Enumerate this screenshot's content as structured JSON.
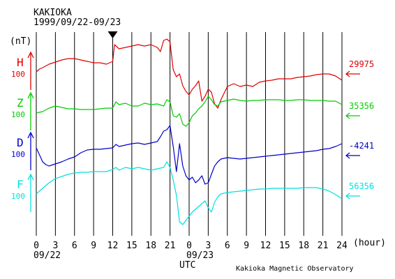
{
  "chart_data": {
    "type": "line",
    "title": "KAKIOKA",
    "subtitle": "1999/09/22-09/23",
    "y_unit_label": "(nT)",
    "x_unit_label": "(hour)",
    "xlabel": "UTC",
    "credit": "Kakioka Magnetic Observatory",
    "x_range_hours": [
      0,
      48
    ],
    "x_tick_labels": [
      "0",
      "3",
      "6",
      "9",
      "12",
      "15",
      "18",
      "21",
      "0",
      "3",
      "6",
      "9",
      "12",
      "15",
      "18",
      "21",
      "24"
    ],
    "date_labels": [
      "09/22",
      "09/23"
    ],
    "marker": {
      "symbol": "▼",
      "hour": 12
    },
    "series": [
      {
        "name": "H",
        "scale_label": "100",
        "baseline_label": "29975",
        "color": "#e00000",
        "points": [
          [
            0,
            103
          ],
          [
            0.5,
            99
          ],
          [
            1,
            97
          ],
          [
            2,
            92
          ],
          [
            3,
            89
          ],
          [
            4,
            86
          ],
          [
            5,
            84
          ],
          [
            6,
            84
          ],
          [
            7,
            86
          ],
          [
            8,
            88
          ],
          [
            9,
            90
          ],
          [
            10,
            90
          ],
          [
            11,
            92
          ],
          [
            12,
            88
          ],
          [
            12.3,
            64
          ],
          [
            13,
            70
          ],
          [
            14,
            68
          ],
          [
            15,
            66
          ],
          [
            16,
            64
          ],
          [
            17,
            66
          ],
          [
            18,
            64
          ],
          [
            19,
            68
          ],
          [
            19.5,
            74
          ],
          [
            20,
            58
          ],
          [
            20.5,
            56
          ],
          [
            21,
            60
          ],
          [
            21.5,
            100
          ],
          [
            22,
            110
          ],
          [
            22.5,
            106
          ],
          [
            23,
            123
          ],
          [
            23.5,
            131
          ],
          [
            24,
            136
          ],
          [
            24.5,
            128
          ],
          [
            25,
            123
          ],
          [
            25.5,
            116
          ],
          [
            26,
            145
          ],
          [
            26.5,
            138
          ],
          [
            27,
            128
          ],
          [
            27.5,
            132
          ],
          [
            28,
            149
          ],
          [
            28.5,
            155
          ],
          [
            29,
            143
          ],
          [
            30,
            124
          ],
          [
            31,
            120
          ],
          [
            32,
            124
          ],
          [
            33,
            122
          ],
          [
            34,
            124
          ],
          [
            35,
            118
          ],
          [
            36,
            116
          ],
          [
            37,
            115
          ],
          [
            38,
            113
          ],
          [
            39,
            113
          ],
          [
            40,
            113
          ],
          [
            41,
            111
          ],
          [
            42,
            110
          ],
          [
            43,
            109
          ],
          [
            44,
            107
          ],
          [
            45,
            106
          ],
          [
            46,
            106
          ],
          [
            47,
            109
          ],
          [
            48,
            115
          ]
        ]
      },
      {
        "name": "Z",
        "scale_label": "100",
        "baseline_label": "35356",
        "color": "#00cc00",
        "points": [
          [
            0,
            162
          ],
          [
            1,
            160
          ],
          [
            2,
            155
          ],
          [
            3,
            152
          ],
          [
            4,
            154
          ],
          [
            5,
            156
          ],
          [
            6,
            156
          ],
          [
            7,
            157
          ],
          [
            8,
            157
          ],
          [
            9,
            157
          ],
          [
            10,
            156
          ],
          [
            11,
            155
          ],
          [
            12,
            155
          ],
          [
            12.5,
            146
          ],
          [
            13,
            150
          ],
          [
            14,
            148
          ],
          [
            15,
            152
          ],
          [
            16,
            152
          ],
          [
            17,
            148
          ],
          [
            18,
            150
          ],
          [
            19,
            149
          ],
          [
            20,
            152
          ],
          [
            20.5,
            143
          ],
          [
            21,
            146
          ],
          [
            21.5,
            166
          ],
          [
            22,
            168
          ],
          [
            22.5,
            163
          ],
          [
            23,
            178
          ],
          [
            23.5,
            181
          ],
          [
            24,
            176
          ],
          [
            24.5,
            166
          ],
          [
            25,
            162
          ],
          [
            25.5,
            156
          ],
          [
            26,
            152
          ],
          [
            26.5,
            146
          ],
          [
            27,
            138
          ],
          [
            27.5,
            143
          ],
          [
            28,
            150
          ],
          [
            28.5,
            152
          ],
          [
            29,
            146
          ],
          [
            30,
            144
          ],
          [
            31,
            142
          ],
          [
            32,
            144
          ],
          [
            33,
            145
          ],
          [
            34,
            144
          ],
          [
            35,
            144
          ],
          [
            36,
            143
          ],
          [
            37,
            143
          ],
          [
            38,
            143
          ],
          [
            39,
            144
          ],
          [
            40,
            144
          ],
          [
            41,
            143
          ],
          [
            42,
            143
          ],
          [
            43,
            144
          ],
          [
            44,
            144
          ],
          [
            45,
            144
          ],
          [
            46,
            145
          ],
          [
            47,
            145
          ],
          [
            48,
            150
          ]
        ]
      },
      {
        "name": "D",
        "scale_label": "100",
        "baseline_label": "-4241",
        "color": "#0000cc",
        "points": [
          [
            0,
            212
          ],
          [
            0.5,
            222
          ],
          [
            1,
            232
          ],
          [
            1.5,
            236
          ],
          [
            2,
            238
          ],
          [
            3,
            235
          ],
          [
            4,
            232
          ],
          [
            5,
            228
          ],
          [
            6,
            225
          ],
          [
            7,
            219
          ],
          [
            8,
            215
          ],
          [
            9,
            214
          ],
          [
            10,
            214
          ],
          [
            11,
            213
          ],
          [
            12,
            212
          ],
          [
            12.5,
            207
          ],
          [
            13,
            210
          ],
          [
            14,
            208
          ],
          [
            15,
            206
          ],
          [
            16,
            205
          ],
          [
            17,
            207
          ],
          [
            18,
            205
          ],
          [
            19,
            203
          ],
          [
            19.5,
            196
          ],
          [
            20,
            188
          ],
          [
            20.5,
            186
          ],
          [
            21,
            180
          ],
          [
            21.5,
            210
          ],
          [
            22,
            246
          ],
          [
            22.5,
            206
          ],
          [
            23,
            238
          ],
          [
            23.5,
            252
          ],
          [
            24,
            258
          ],
          [
            24.5,
            254
          ],
          [
            25,
            262
          ],
          [
            25.5,
            258
          ],
          [
            26,
            252
          ],
          [
            26.5,
            264
          ],
          [
            27,
            262
          ],
          [
            27.5,
            250
          ],
          [
            28,
            238
          ],
          [
            28.5,
            232
          ],
          [
            29,
            228
          ],
          [
            30,
            226
          ],
          [
            31,
            227
          ],
          [
            32,
            228
          ],
          [
            33,
            227
          ],
          [
            34,
            226
          ],
          [
            35,
            225
          ],
          [
            36,
            224
          ],
          [
            37,
            223
          ],
          [
            38,
            222
          ],
          [
            39,
            221
          ],
          [
            40,
            220
          ],
          [
            41,
            219
          ],
          [
            42,
            218
          ],
          [
            43,
            217
          ],
          [
            44,
            216
          ],
          [
            45,
            214
          ],
          [
            46,
            213
          ],
          [
            47,
            210
          ],
          [
            48,
            206
          ]
        ]
      },
      {
        "name": "F",
        "scale_label": "100",
        "baseline_label": "56356",
        "color": "#00e0e0",
        "points": [
          [
            0,
            278
          ],
          [
            1,
            270
          ],
          [
            2,
            262
          ],
          [
            3,
            256
          ],
          [
            4,
            253
          ],
          [
            5,
            250
          ],
          [
            6,
            248
          ],
          [
            7,
            247
          ],
          [
            8,
            247
          ],
          [
            9,
            246
          ],
          [
            10,
            246
          ],
          [
            11,
            246
          ],
          [
            12,
            243
          ],
          [
            12.5,
            240
          ],
          [
            13,
            244
          ],
          [
            14,
            240
          ],
          [
            15,
            242
          ],
          [
            16,
            240
          ],
          [
            17,
            242
          ],
          [
            18,
            244
          ],
          [
            19,
            242
          ],
          [
            20,
            240
          ],
          [
            20.5,
            232
          ],
          [
            21,
            240
          ],
          [
            21.5,
            258
          ],
          [
            22,
            280
          ],
          [
            22.5,
            318
          ],
          [
            23,
            322
          ],
          [
            23.5,
            316
          ],
          [
            24,
            310
          ],
          [
            24.5,
            304
          ],
          [
            25,
            300
          ],
          [
            25.5,
            296
          ],
          [
            26,
            292
          ],
          [
            26.5,
            288
          ],
          [
            27,
            298
          ],
          [
            27.5,
            304
          ],
          [
            28,
            290
          ],
          [
            28.5,
            282
          ],
          [
            29,
            278
          ],
          [
            30,
            276
          ],
          [
            31,
            275
          ],
          [
            32,
            274
          ],
          [
            33,
            273
          ],
          [
            34,
            272
          ],
          [
            35,
            271
          ],
          [
            36,
            271
          ],
          [
            37,
            270
          ],
          [
            38,
            270
          ],
          [
            39,
            270
          ],
          [
            40,
            270
          ],
          [
            41,
            270
          ],
          [
            42,
            269
          ],
          [
            43,
            269
          ],
          [
            44,
            269
          ],
          [
            45,
            271
          ],
          [
            46,
            274
          ],
          [
            47,
            279
          ],
          [
            48,
            285
          ]
        ]
      }
    ]
  }
}
